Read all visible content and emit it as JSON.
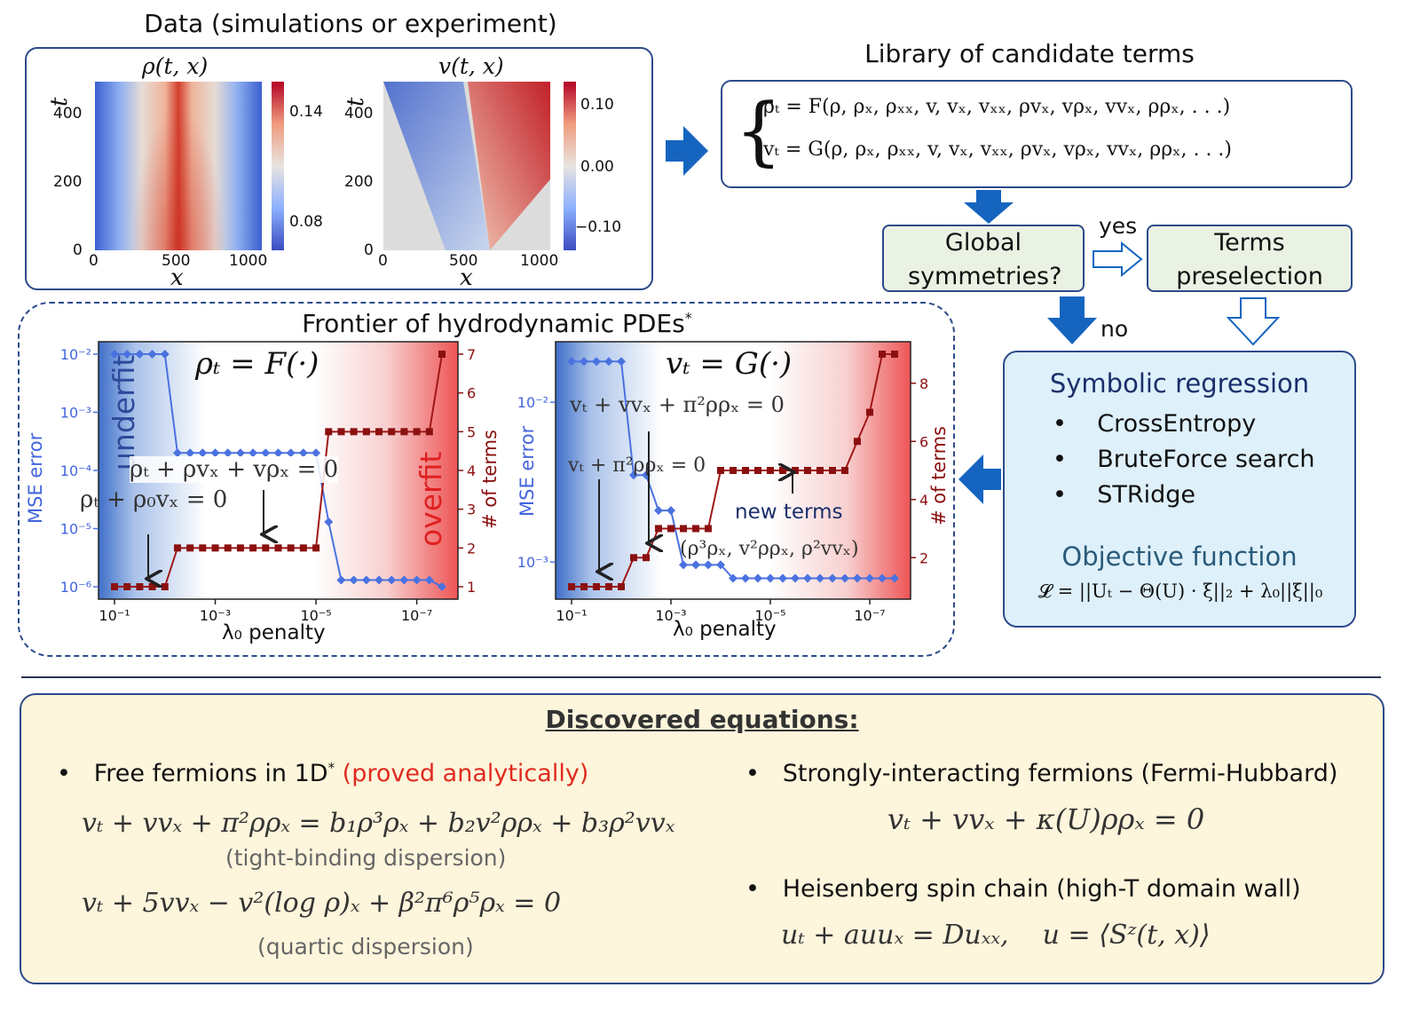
{
  "data_panel": {
    "title": "Data (simulations or experiment)",
    "rho_plot": {
      "title": "ρ(t, x)",
      "ylabel": "t",
      "xlabel": "x",
      "yticks": [
        "400",
        "200",
        "0"
      ],
      "xticks": [
        "0",
        "500",
        "1000"
      ],
      "colorbar_ticks": [
        "0.14",
        "0.08"
      ]
    },
    "v_plot": {
      "title": "v(t, x)",
      "ylabel": "t",
      "xlabel": "x",
      "yticks": [
        "400",
        "200",
        "0"
      ],
      "xticks": [
        "0",
        "500",
        "1000"
      ],
      "colorbar_ticks": [
        "0.10",
        "0.00",
        "−0.10"
      ]
    }
  },
  "library": {
    "title": "Library of candidate terms",
    "eq1": "ρₜ = F(ρ, ρₓ, ρₓₓ, v, vₓ, vₓₓ, ρvₓ, vρₓ, vvₓ, ρρₓ, . . .)",
    "eq2": "vₜ = G(ρ, ρₓ, ρₓₓ, v, vₓ, vₓₓ, ρvₓ, vρₓ, vvₓ, ρρₓ, . . .)"
  },
  "flow": {
    "global_symmetries": "Global symmetries?",
    "yes": "yes",
    "no": "no",
    "terms_preselection": "Terms preselection"
  },
  "symbolic_regression": {
    "title": "Symbolic regression",
    "items": [
      "CrossEntropy",
      "BruteForce search",
      "STRidge"
    ],
    "objective_title": "Objective function",
    "objective_eq": "𝓛 = ||Uₜ − Θ(U) · ξ||₂ + λ₀||ξ||₀"
  },
  "frontier": {
    "title": "Frontier of hydrodynamic PDEs",
    "title_star": "*",
    "left_chart": {
      "heading": "ρₜ = F(·)",
      "ylabel_left": "MSE error",
      "ylabel_right": "# of terms",
      "xlabel": "λ₀ penalty",
      "xticks": [
        "10⁻¹",
        "10⁻³",
        "10⁻⁵",
        "10⁻⁷"
      ],
      "yticks_left": [
        "10⁻²",
        "10⁻³",
        "10⁻⁴",
        "10⁻⁵",
        "10⁻⁶"
      ],
      "yticks_right": [
        "7",
        "6",
        "5",
        "4",
        "3",
        "2",
        "1"
      ],
      "underfit": "underfit",
      "overfit": "overfit",
      "annot1": "ρₜ + ρvₓ + vρₓ = 0",
      "annot2": "ρₜ + ρ₀vₓ = 0"
    },
    "right_chart": {
      "heading": "vₜ = G(·)",
      "ylabel_left": "MSE error",
      "ylabel_right": "# of terms",
      "xlabel": "λ₀ penalty",
      "xticks": [
        "10⁻¹",
        "10⁻³",
        "10⁻⁵",
        "10⁻⁷"
      ],
      "yticks_left": [
        "10⁻²",
        "10⁻³"
      ],
      "yticks_right": [
        "8",
        "6",
        "4",
        "2"
      ],
      "annot1": "vₜ + vvₓ + π²ρρₓ = 0",
      "annot2": "vₜ + π²ρρₓ = 0",
      "annot3": "(ρ³ρₓ, v²ρρₓ, ρ²vvₓ)",
      "new_terms": "new terms"
    }
  },
  "chart_data": [
    {
      "type": "line",
      "x": [
        0.1,
        0.0562,
        0.0316,
        0.0178,
        0.01,
        0.00562,
        0.00316,
        0.00178,
        0.001,
        0.000562,
        0.000316,
        0.000178,
        0.0001,
        5.62e-05,
        3.16e-05,
        1.78e-05,
        1e-05,
        5.62e-06,
        3.16e-06,
        1.78e-06,
        1e-06,
        5.62e-07,
        3.16e-07,
        1.78e-07,
        1e-07,
        5.62e-08,
        3.16e-08
      ],
      "xscale": "log",
      "series": [
        {
          "axis": "left",
          "values": [
            0.01,
            0.01,
            0.01,
            0.01,
            0.01,
            0.0002,
            0.0002,
            0.0002,
            0.0002,
            0.0002,
            0.0002,
            0.0002,
            0.0002,
            0.0002,
            0.0002,
            0.0002,
            0.0002,
            1.3e-05,
            1.3e-06,
            1.3e-06,
            1.3e-06,
            1.3e-06,
            1.3e-06,
            1.3e-06,
            1.3e-06,
            1.3e-06,
            1e-06
          ]
        },
        {
          "axis": "right",
          "values": [
            1,
            1,
            1,
            1,
            1,
            2,
            2,
            2,
            2,
            2,
            2,
            2,
            2,
            2,
            2,
            2,
            2,
            5,
            5,
            5,
            5,
            5,
            5,
            5,
            5,
            5,
            7
          ]
        }
      ],
      "ylim_left": [
        1e-06,
        0.01
      ],
      "ylim_right": [
        1,
        7
      ]
    },
    {
      "type": "line",
      "x": [
        0.1,
        0.0562,
        0.0316,
        0.0178,
        0.01,
        0.00562,
        0.00316,
        0.00178,
        0.001,
        0.000562,
        0.000316,
        0.000178,
        0.0001,
        5.62e-05,
        3.16e-05,
        1.78e-05,
        1e-05,
        5.62e-06,
        3.16e-06,
        1.78e-06,
        1e-06,
        5.62e-07,
        3.16e-07,
        1.78e-07,
        1e-07,
        5.62e-08,
        3.16e-08
      ],
      "xscale": "log",
      "series": [
        {
          "axis": "left",
          "values": [
            0.018,
            0.018,
            0.018,
            0.018,
            0.018,
            0.0035,
            0.0035,
            0.0021,
            0.0021,
            0.00096,
            0.00096,
            0.00096,
            0.00096,
            0.00079,
            0.00079,
            0.00079,
            0.00079,
            0.00079,
            0.00079,
            0.00079,
            0.00079,
            0.00079,
            0.00079,
            0.00079,
            0.00079,
            0.00079,
            0.00079
          ]
        },
        {
          "axis": "right",
          "values": [
            1,
            1,
            1,
            1,
            1,
            2,
            2,
            3,
            3,
            3,
            3,
            3,
            5,
            5,
            5,
            5,
            5,
            5,
            5,
            5,
            5,
            5,
            5,
            6,
            7,
            9,
            9
          ]
        }
      ],
      "ylim_left": [
        0.0007,
        0.02
      ],
      "ylim_right": [
        1,
        9
      ]
    }
  ],
  "discovered": {
    "title": "Discovered equations:",
    "free_fermions": "Free fermions  in 1D",
    "free_star": "*",
    "proved": "(proved analytically)",
    "eq_tb": "vₜ + vvₓ + π²ρρₓ = b₁ρ³ρₓ + b₂v²ρρₓ + b₃ρ²vvₓ",
    "tb_caption": "(tight-binding dispersion)",
    "eq_quartic": "vₜ + 5vvₓ − v²(log ρ)ₓ + β²π⁶ρ⁵ρₓ = 0",
    "quartic_caption": "(quartic dispersion)",
    "hubbard": "Strongly-interacting fermions (Fermi-Hubbard)",
    "eq_hubbard": "vₜ + vvₓ + κ(U)ρρₓ = 0",
    "heisenberg": "Heisenberg spin chain (high-T domain wall)",
    "eq_heisenberg": "uₜ + auuₓ = Duₓₓ,    u = ⟨Sᶻ(t, x)⟩"
  }
}
